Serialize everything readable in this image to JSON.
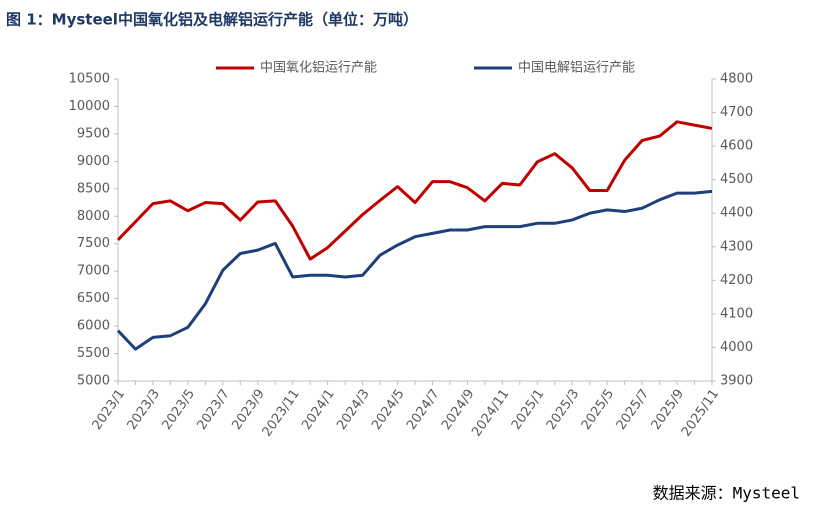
{
  "chart_data": {
    "type": "line",
    "title": "图 1：Mysteel中国氧化铝及电解铝运行产能（单位：万吨）",
    "source": "数据来源：Mysteel",
    "categories": [
      "2023/1",
      null,
      "2023/3",
      null,
      "2023/5",
      null,
      "2023/7",
      null,
      "2023/9",
      null,
      "2023/11",
      null,
      "2024/1",
      null,
      "2024/3",
      null,
      "2024/5",
      null,
      "2024/7",
      null,
      "2024/9",
      null,
      "2024/11",
      null,
      "2025/1",
      null,
      "2025/3",
      null,
      "2025/5",
      null,
      "2025/7",
      null,
      "2025/9",
      null,
      "2025/11"
    ],
    "series": [
      {
        "name": "中国氧化铝运行产能",
        "color": "#c00000",
        "axis": "y",
        "values": [
          7570,
          7900,
          8230,
          8280,
          8100,
          8250,
          8230,
          7930,
          8260,
          8280,
          7820,
          7220,
          7430,
          7730,
          8030,
          8290,
          8540,
          8250,
          8630,
          8630,
          8520,
          8280,
          8600,
          8570,
          8990,
          9140,
          8880,
          8470,
          8470,
          9020,
          9380,
          9460,
          9720,
          9660,
          9600
        ]
      },
      {
        "name": "中国电解铝运行产能",
        "color": "#1f3f7a",
        "axis": "y2",
        "values": [
          4050,
          3995,
          4030,
          4035,
          4060,
          4130,
          4230,
          4280,
          4290,
          4310,
          4210,
          4215,
          4215,
          4210,
          4215,
          4275,
          4305,
          4330,
          4340,
          4350,
          4350,
          4360,
          4360,
          4360,
          4370,
          4370,
          4380,
          4400,
          4410,
          4405,
          4415,
          4440,
          4460,
          4460,
          4465
        ]
      }
    ],
    "ylim": [
      5000,
      10500
    ],
    "yticks": [
      5000,
      5500,
      6000,
      6500,
      7000,
      7500,
      8000,
      8500,
      9000,
      9500,
      10000,
      10500
    ],
    "y2lim": [
      3900,
      4800
    ],
    "y2ticks": [
      3900,
      4000,
      4100,
      4200,
      4300,
      4400,
      4500,
      4600,
      4700,
      4800
    ],
    "legend": "top"
  }
}
